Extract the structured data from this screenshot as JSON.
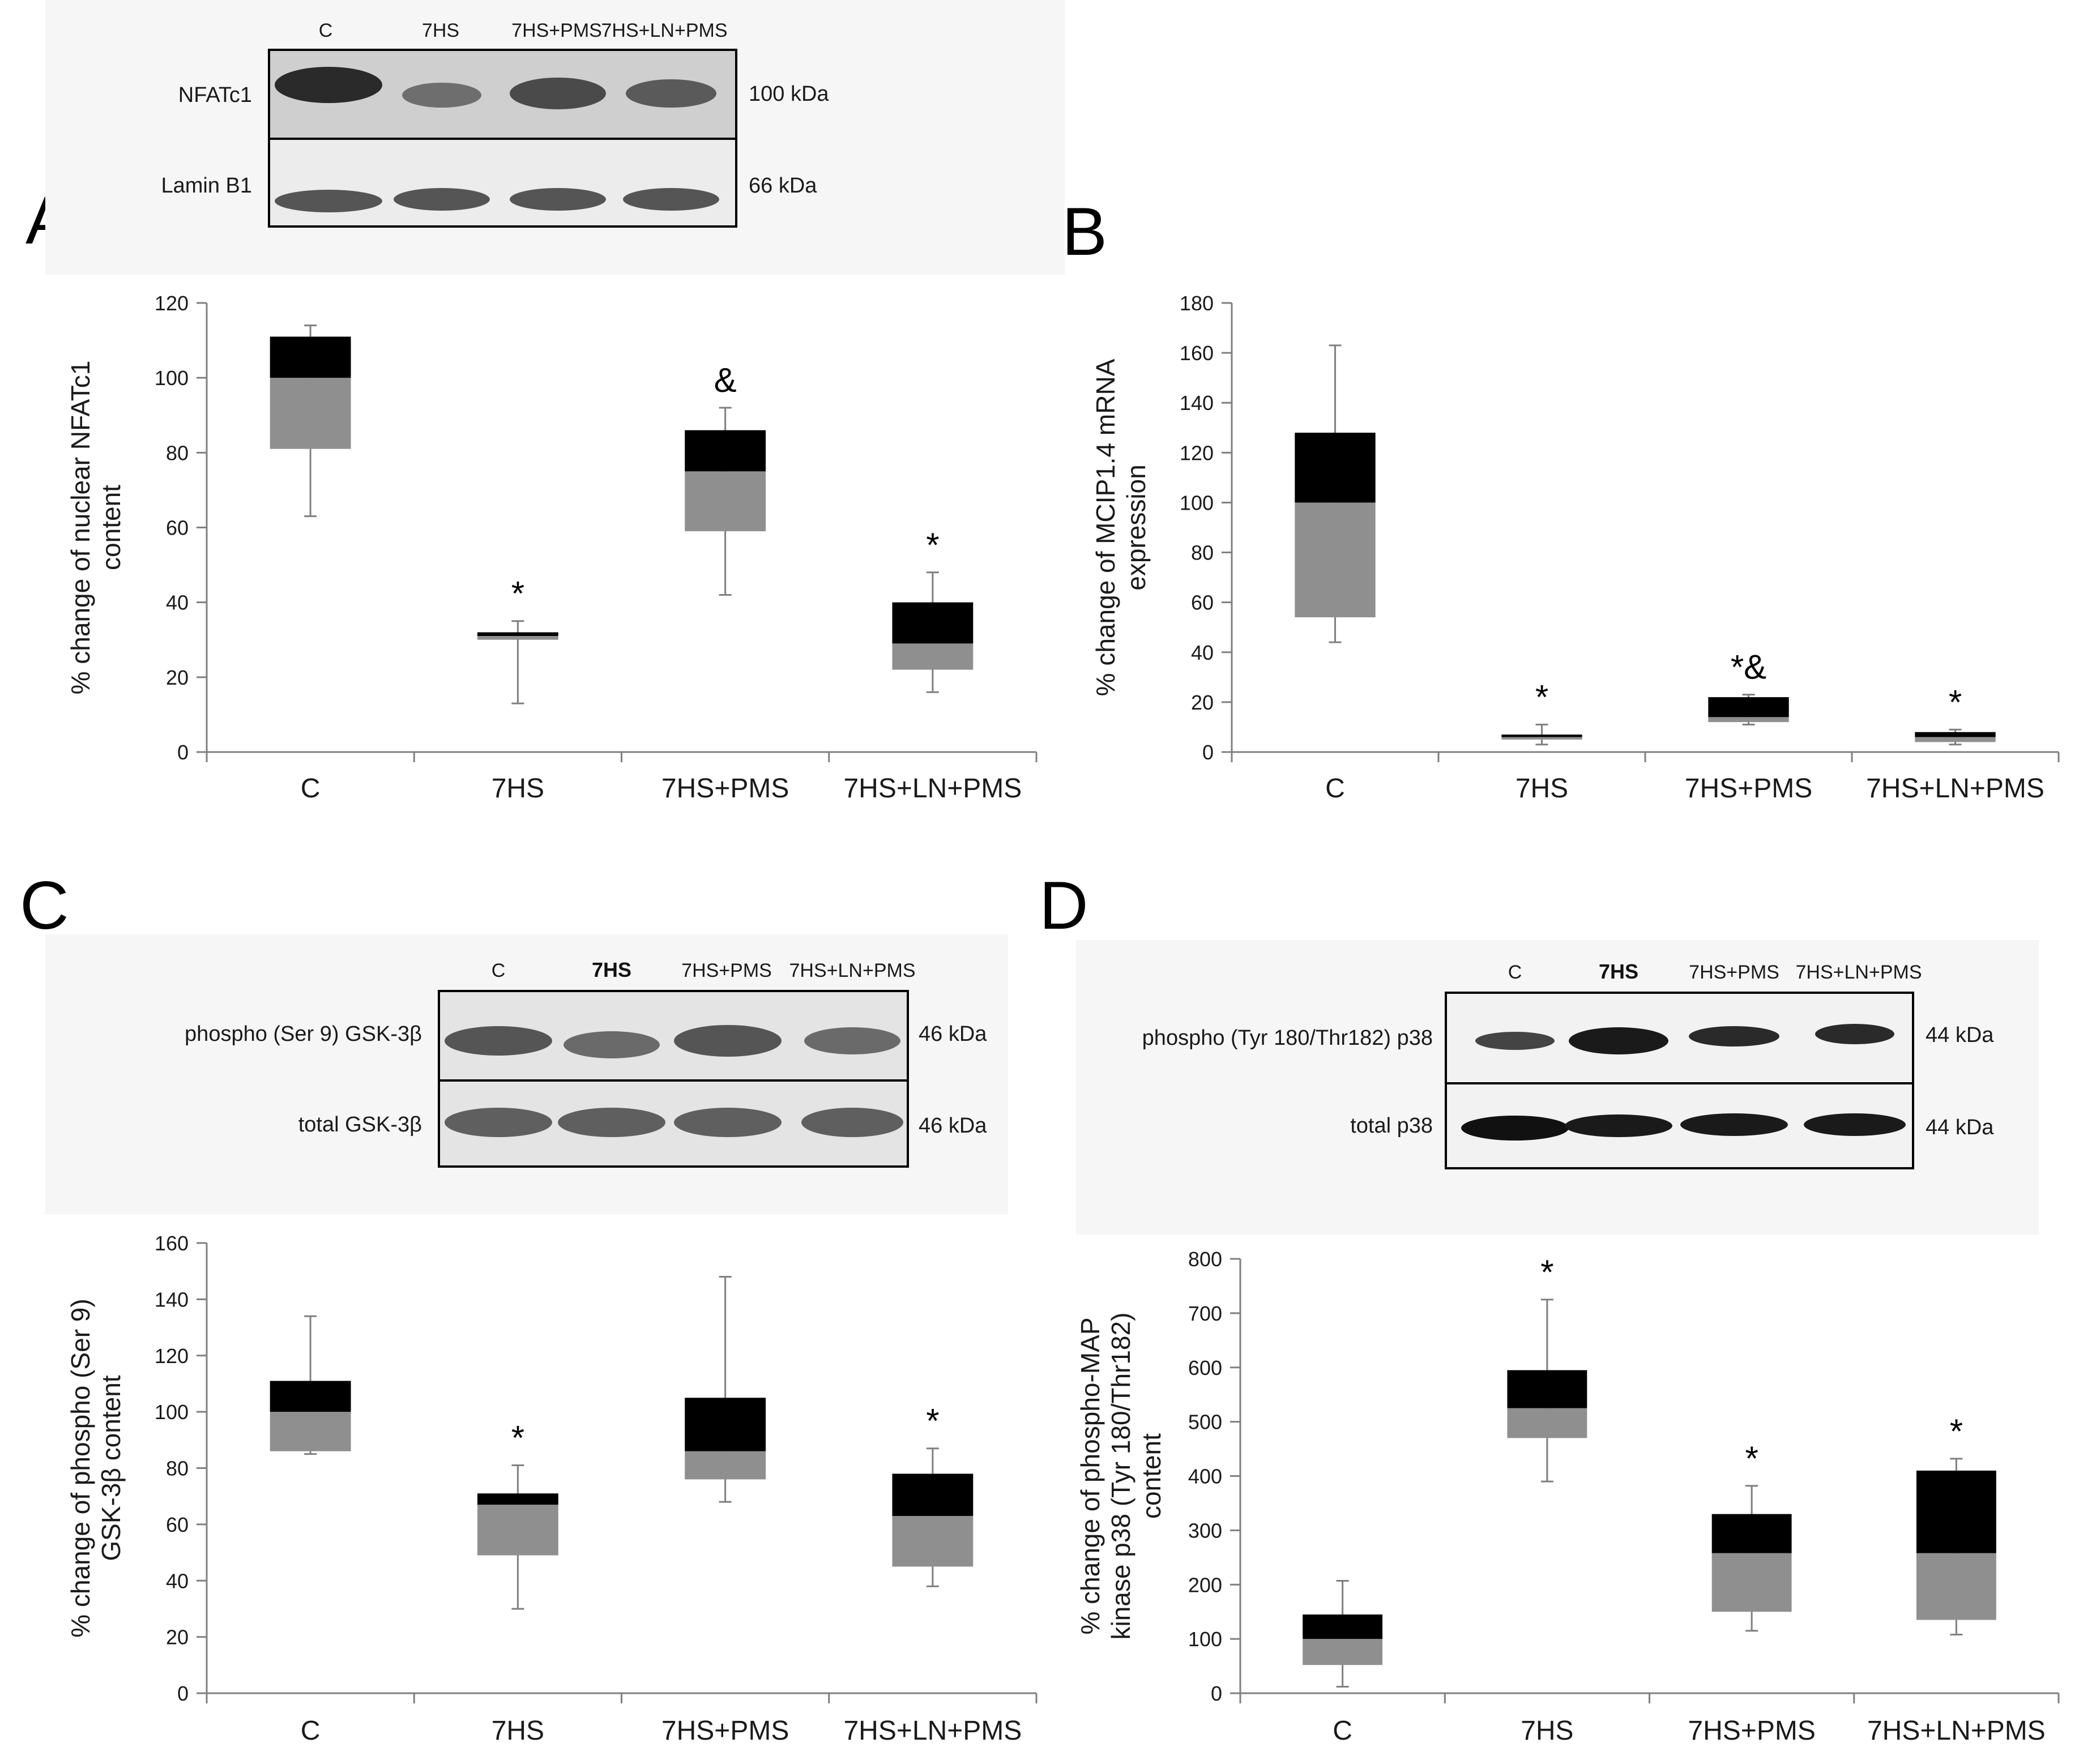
{
  "panel_labels": [
    "A",
    "B",
    "C",
    "D"
  ],
  "colors": {
    "lower_box": "#8f8f8f",
    "upper_box": "#000000",
    "axis": "#7f7f7f",
    "blot_bg": "#eaeaea",
    "band": "#2d2d2d"
  },
  "blots": [
    {
      "lanes": [
        "C",
        "7HS",
        "7HS+PMS",
        "7HS+LN+PMS"
      ],
      "rows": [
        {
          "label": "NFATc1",
          "size": "100 kDa"
        },
        {
          "label": "Lamin B1",
          "size": "66 kDa"
        }
      ]
    },
    {
      "lanes": [
        "C",
        "7HS",
        "7HS+PMS",
        "7HS+LN+PMS"
      ],
      "rows": [
        {
          "label": "phospho (Ser 9) GSK-3β",
          "size": "46 kDa"
        },
        {
          "label": "total GSK-3β",
          "size": "46 kDa"
        }
      ]
    },
    {
      "lanes": [
        "C",
        "7HS",
        "7HS+PMS",
        "7HS+LN+PMS"
      ],
      "rows": [
        {
          "label": "phospho (Tyr 180/Thr182) p38",
          "size": "44 kDa"
        },
        {
          "label": "total p38",
          "size": "44 kDa"
        }
      ]
    }
  ],
  "chart_data": [
    {
      "panel": "A",
      "type": "bar",
      "subtype": "stacked box (q1-median-q3) with whiskers",
      "title": "",
      "xlabel": "",
      "ylabel": [
        "% change of nuclear NFATc1",
        "content"
      ],
      "ylim": [
        0,
        120
      ],
      "yticks": [
        0,
        20,
        40,
        60,
        80,
        100,
        120
      ],
      "grid": false,
      "categories": [
        "C",
        "7HS",
        "7HS+PMS",
        "7HS+LN+PMS"
      ],
      "series": [
        {
          "name": "q1",
          "values": [
            81,
            30,
            59,
            22
          ]
        },
        {
          "name": "median",
          "values": [
            100,
            31,
            75,
            29
          ]
        },
        {
          "name": "q3",
          "values": [
            111,
            32,
            86,
            40
          ]
        },
        {
          "name": "min",
          "values": [
            63,
            13,
            42,
            16
          ]
        },
        {
          "name": "max",
          "values": [
            114,
            35,
            92,
            48
          ]
        }
      ],
      "annotations": [
        "",
        "*",
        "&",
        "*"
      ]
    },
    {
      "panel": "B",
      "type": "bar",
      "subtype": "stacked box (q1-median-q3) with whiskers",
      "title": "",
      "xlabel": "",
      "ylabel": [
        "% change of  MCIP1.4 mRNA",
        "expression"
      ],
      "ylim": [
        0,
        180
      ],
      "yticks": [
        0,
        20,
        40,
        60,
        80,
        100,
        120,
        140,
        160,
        180
      ],
      "grid": false,
      "categories": [
        "C",
        "7HS",
        "7HS+PMS",
        "7HS+LN+PMS"
      ],
      "series": [
        {
          "name": "q1",
          "values": [
            54,
            5,
            12,
            4
          ]
        },
        {
          "name": "median",
          "values": [
            100,
            6,
            14,
            6
          ]
        },
        {
          "name": "q3",
          "values": [
            128,
            7,
            22,
            8
          ]
        },
        {
          "name": "min",
          "values": [
            44,
            3,
            11,
            3
          ]
        },
        {
          "name": "max",
          "values": [
            163,
            11,
            23,
            9
          ]
        }
      ],
      "annotations": [
        "",
        "*",
        "*&",
        "*"
      ]
    },
    {
      "panel": "C",
      "type": "bar",
      "subtype": "stacked box (q1-median-q3) with whiskers",
      "title": "",
      "xlabel": "",
      "ylabel": [
        "% change of phospho (Ser 9)",
        "GSK-3β content"
      ],
      "ylim": [
        0,
        160
      ],
      "yticks": [
        0,
        20,
        40,
        60,
        80,
        100,
        120,
        140,
        160
      ],
      "grid": false,
      "categories": [
        "C",
        "7HS",
        "7HS+PMS",
        "7HS+LN+PMS"
      ],
      "series": [
        {
          "name": "q1",
          "values": [
            86,
            49,
            76,
            45
          ]
        },
        {
          "name": "median",
          "values": [
            100,
            67,
            86,
            63
          ]
        },
        {
          "name": "q3",
          "values": [
            111,
            71,
            105,
            78
          ]
        },
        {
          "name": "min",
          "values": [
            85,
            30,
            68,
            38
          ]
        },
        {
          "name": "max",
          "values": [
            134,
            81,
            148,
            87
          ]
        }
      ],
      "annotations": [
        "",
        "*",
        "",
        "*"
      ]
    },
    {
      "panel": "D",
      "type": "bar",
      "subtype": "stacked box (q1-median-q3) with whiskers",
      "title": "",
      "xlabel": "",
      "ylabel": [
        "% change of phospho-MAP",
        "kinase p38 (Tyr 180/Thr182)",
        "content"
      ],
      "ylim": [
        0,
        800
      ],
      "yticks": [
        0,
        100,
        200,
        300,
        400,
        500,
        600,
        700,
        800
      ],
      "grid": false,
      "categories": [
        "C",
        "7HS",
        "7HS+PMS",
        "7HS+LN+PMS"
      ],
      "series": [
        {
          "name": "q1",
          "values": [
            52,
            470,
            150,
            135
          ]
        },
        {
          "name": "median",
          "values": [
            100,
            525,
            258,
            258
          ]
        },
        {
          "name": "q3",
          "values": [
            145,
            595,
            330,
            410
          ]
        },
        {
          "name": "min",
          "values": [
            12,
            390,
            115,
            108
          ]
        },
        {
          "name": "max",
          "values": [
            207,
            725,
            382,
            432
          ]
        }
      ],
      "annotations": [
        "",
        "*",
        "*",
        "*"
      ]
    }
  ]
}
